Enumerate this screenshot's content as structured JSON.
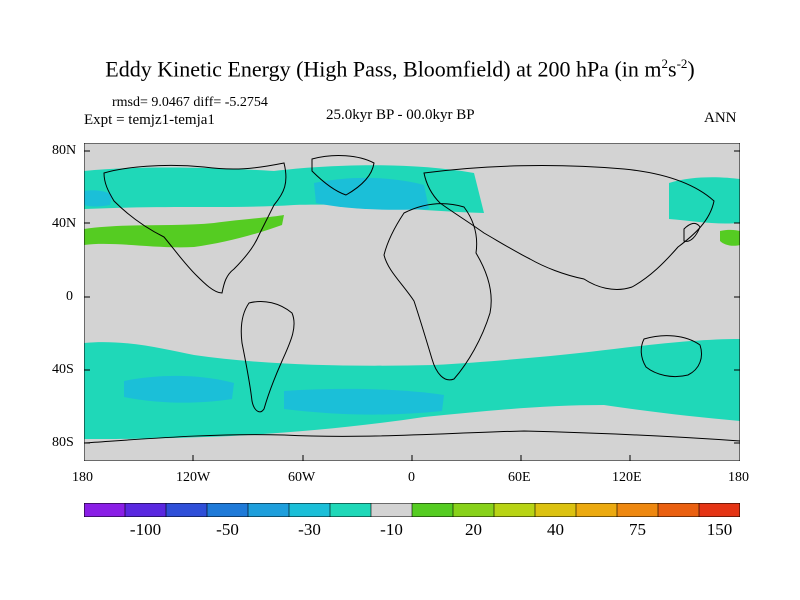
{
  "title": {
    "main": "Eddy Kinetic Energy (High Pass, Bloomfield) at 200 hPa (in m",
    "sup1": "2",
    "mid": "s",
    "sup2": "-2",
    "end": ")"
  },
  "stats": {
    "rmsd_diff": "rmsd= 9.0467 diff= -5.2754",
    "expt": "Expt = temjz1-temja1",
    "period": "25.0kyr BP - 00.0kyr BP",
    "season": "ANN"
  },
  "axes": {
    "lat_labels": [
      "80N",
      "40N",
      "0",
      "40S",
      "80S"
    ],
    "lon_labels": [
      "180",
      "120W",
      "60W",
      "0",
      "60E",
      "120E",
      "180"
    ]
  },
  "colorbar": {
    "colors": [
      "#8a1ee6",
      "#5a28e0",
      "#2f4fd8",
      "#1f7ad8",
      "#1e9fdc",
      "#1bbfd8",
      "#1fd8b8",
      "#d3d3d3",
      "#55cc22",
      "#88d21a",
      "#b8d414",
      "#dcc210",
      "#ecaa10",
      "#ee8810",
      "#ea6010",
      "#e43414"
    ],
    "labels": [
      "-100",
      "-50",
      "-30",
      "-10",
      "20",
      "40",
      "75",
      "150"
    ],
    "label_positions": [
      2,
      4,
      6,
      8,
      10,
      12,
      14,
      16
    ]
  },
  "map": {
    "ocean_color": "#d3d3d3",
    "positive_color": "#55cc22",
    "negative_color": "#1fd8b8",
    "strong_negative_color": "#1bbfd8"
  }
}
